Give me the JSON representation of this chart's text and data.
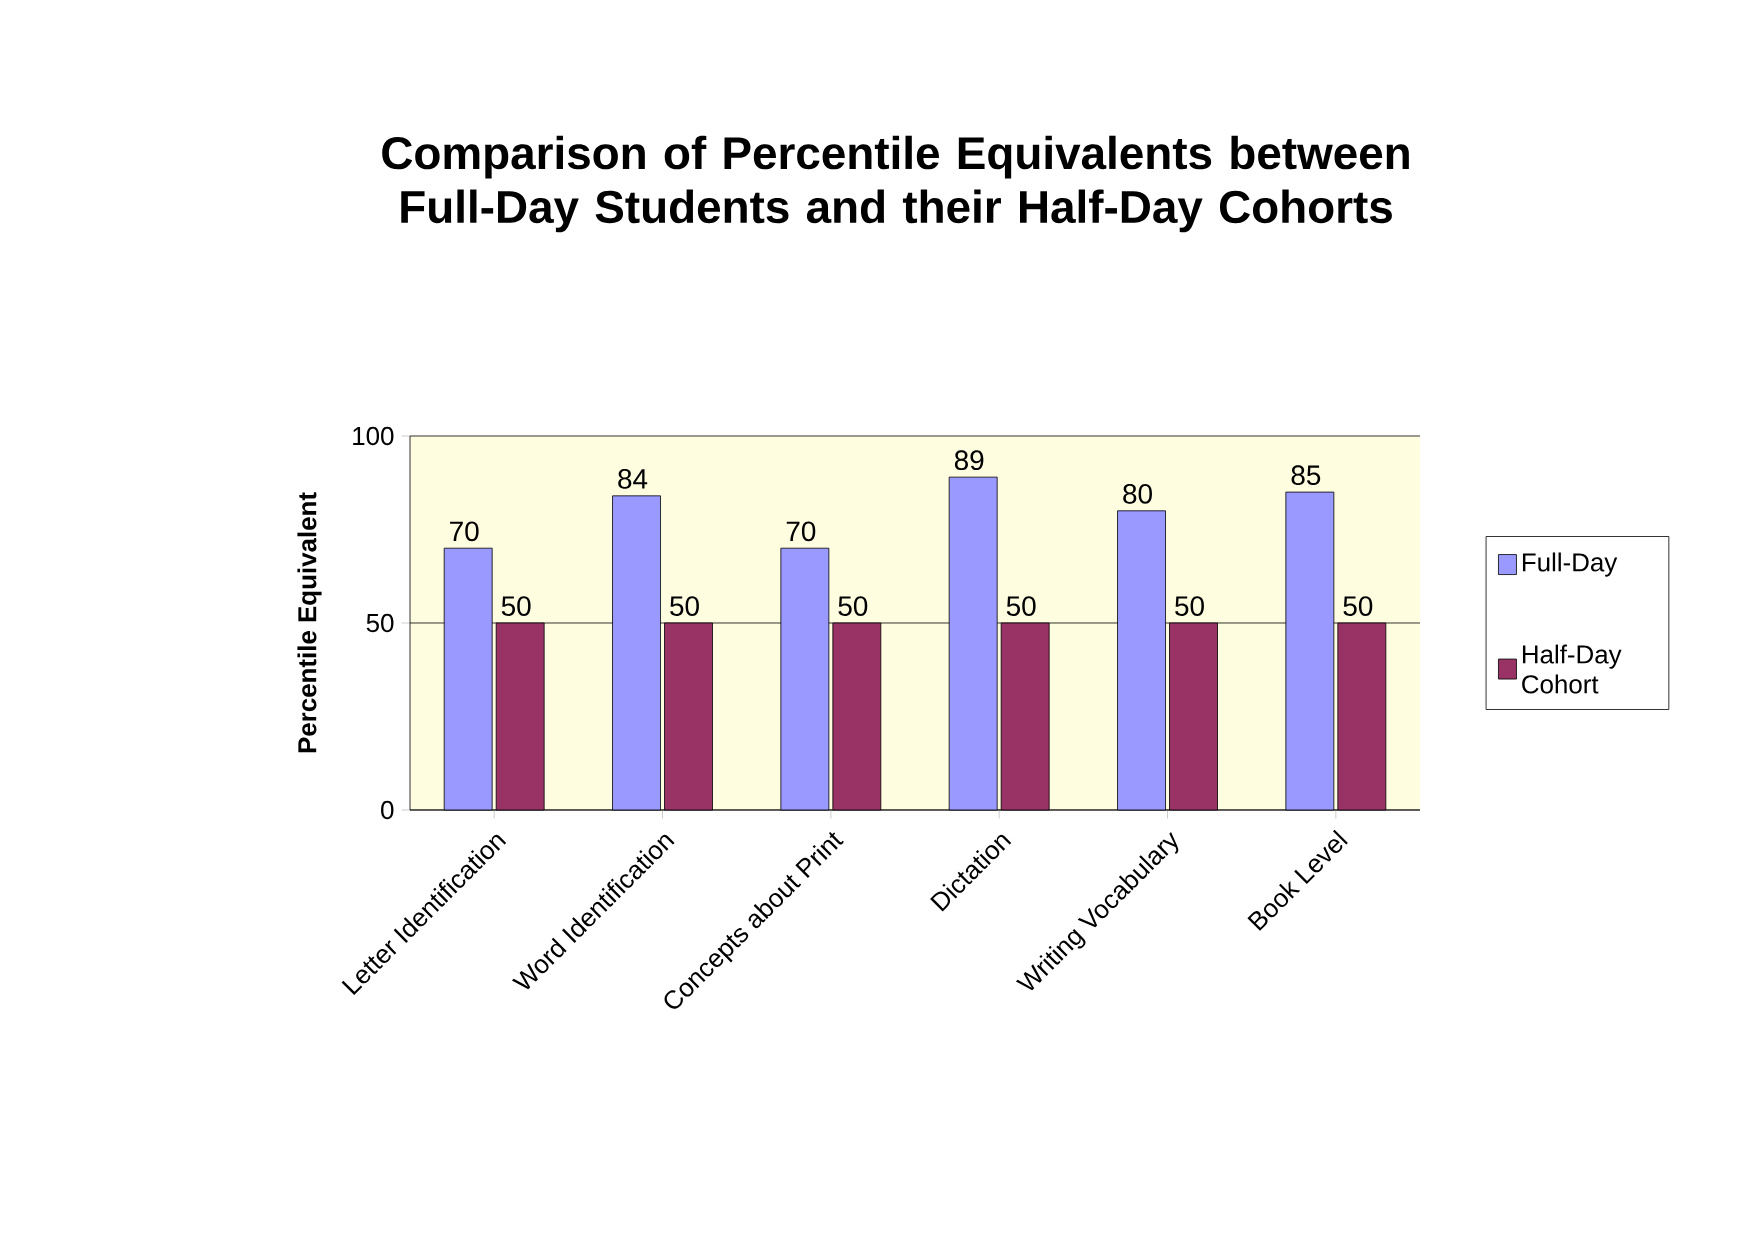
{
  "chart_data": {
    "type": "bar",
    "title": "Comparison of Percentile Equivalents between Full-Day Students and their Half-Day Cohorts",
    "ylabel": "Percentile Equivalent",
    "categories": [
      "Letter Identification",
      "Word Identification",
      "Concepts about Print",
      "Dictation",
      "Writing Vocabulary",
      "Book Level"
    ],
    "series": [
      {
        "name": "Full-Day",
        "color": "#9999ff",
        "values": [
          70,
          84,
          70,
          89,
          80,
          85
        ]
      },
      {
        "name": "Half-Day Cohort",
        "color": "#993366",
        "values": [
          50,
          50,
          50,
          50,
          50,
          50
        ]
      }
    ],
    "ylim": [
      0,
      100
    ],
    "yticks": [
      0,
      50,
      100
    ],
    "grid": "y",
    "legend": "right",
    "data_labels": true
  }
}
